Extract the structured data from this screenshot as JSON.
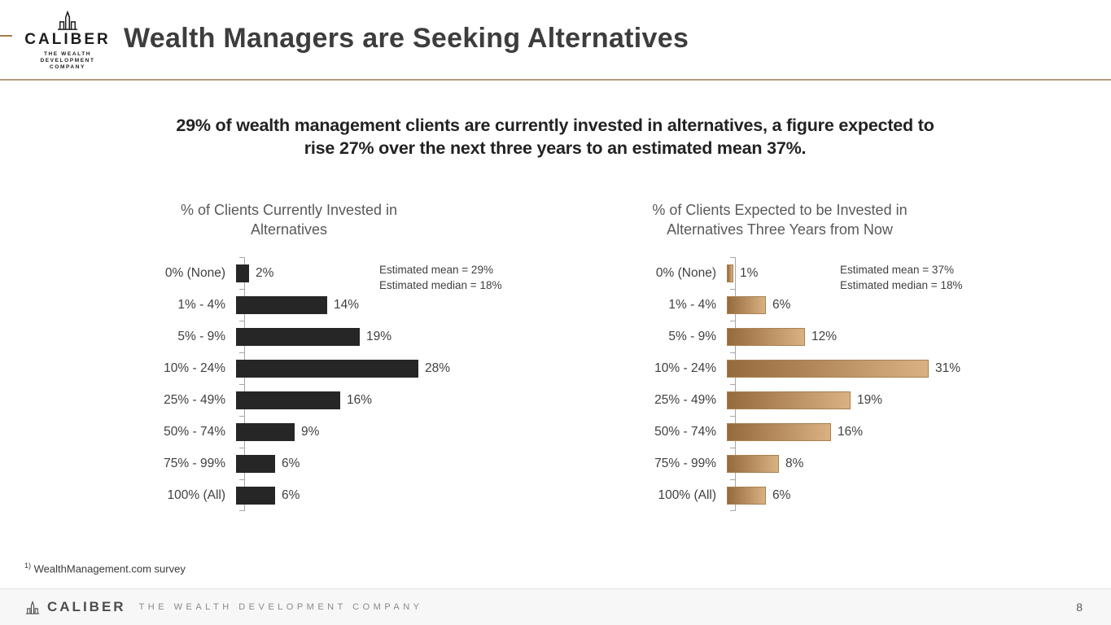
{
  "header": {
    "logo_name": "CALIBER",
    "logo_tagline": "THE WEALTH DEVELOPMENT\nCOMPANY",
    "title": "Wealth Managers are Seeking Alternatives",
    "accent_color": "#a57b4c",
    "rule_color": "#b59c7e"
  },
  "statement": "29% of wealth management clients are currently invested in alternatives, a figure expected to\nrise 27% over the next three years to an estimated mean 37%.",
  "chart_data": [
    {
      "type": "bar",
      "orientation": "horizontal",
      "title": "% of Clients Currently Invested in\nAlternatives",
      "categories": [
        "0% (None)",
        "1% - 4%",
        "5% - 9%",
        "10% - 24%",
        "25% - 49%",
        "50% - 74%",
        "75% - 99%",
        "100% (All)"
      ],
      "values": [
        2,
        14,
        19,
        28,
        16,
        9,
        6,
        6
      ],
      "value_labels": [
        "2%",
        "14%",
        "19%",
        "28%",
        "16%",
        "9%",
        "6%",
        "6%"
      ],
      "annotation": "Estimated mean = 29%\nEstimated median = 18%",
      "bar_color": "#262626",
      "xlim": [
        0,
        35
      ],
      "grid": false,
      "legend": false
    },
    {
      "type": "bar",
      "orientation": "horizontal",
      "title": "% of Clients Expected to be Invested in\nAlternatives Three Years from Now",
      "categories": [
        "0% (None)",
        "1% - 4%",
        "5% - 9%",
        "10% - 24%",
        "25% - 49%",
        "50% - 74%",
        "75% - 99%",
        "100% (All)"
      ],
      "values": [
        1,
        6,
        12,
        31,
        19,
        16,
        8,
        6
      ],
      "value_labels": [
        "1%",
        "6%",
        "12%",
        "31%",
        "19%",
        "16%",
        "8%",
        "6%"
      ],
      "annotation": "Estimated mean = 37%\nEstimated median = 18%",
      "bar_gradient_start": "#956a3c",
      "bar_gradient_end": "#d9b183",
      "bar_border_color": "#a9814f",
      "xlim": [
        0,
        35
      ],
      "grid": false,
      "legend": false
    }
  ],
  "footnote": {
    "superscript": "1)",
    "text": "WealthManagement.com survey"
  },
  "footer": {
    "logo_name": "CALIBER",
    "tagline": "THE WEALTH DEVELOPMENT COMPANY",
    "page_number": "8"
  }
}
